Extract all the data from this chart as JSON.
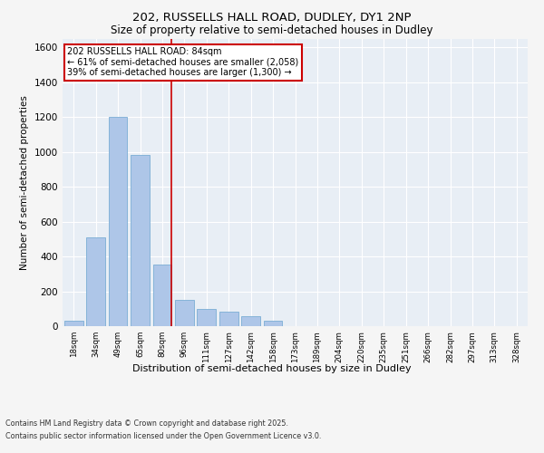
{
  "title_line1": "202, RUSSELLS HALL ROAD, DUDLEY, DY1 2NP",
  "title_line2": "Size of property relative to semi-detached houses in Dudley",
  "xlabel": "Distribution of semi-detached houses by size in Dudley",
  "ylabel": "Number of semi-detached properties",
  "bins": [
    "18sqm",
    "34sqm",
    "49sqm",
    "65sqm",
    "80sqm",
    "96sqm",
    "111sqm",
    "127sqm",
    "142sqm",
    "158sqm",
    "173sqm",
    "189sqm",
    "204sqm",
    "220sqm",
    "235sqm",
    "251sqm",
    "266sqm",
    "282sqm",
    "297sqm",
    "313sqm",
    "328sqm"
  ],
  "bar_values": [
    30,
    510,
    1200,
    980,
    355,
    150,
    100,
    85,
    55,
    30,
    0,
    0,
    0,
    0,
    0,
    0,
    0,
    0,
    0,
    0,
    0
  ],
  "bar_color": "#aec6e8",
  "bar_edge_color": "#7aadd4",
  "vline_color": "#cc0000",
  "vline_x": 4.42,
  "annotation_title": "202 RUSSELLS HALL ROAD: 84sqm",
  "annotation_line1": "← 61% of semi-detached houses are smaller (2,058)",
  "annotation_line2": "39% of semi-detached houses are larger (1,300) →",
  "annotation_box_facecolor": "#ffffff",
  "annotation_box_edgecolor": "#cc0000",
  "ylim": [
    0,
    1650
  ],
  "yticks": [
    0,
    200,
    400,
    600,
    800,
    1000,
    1200,
    1400,
    1600
  ],
  "plot_bg_color": "#e8eef5",
  "fig_bg_color": "#f5f5f5",
  "footer_line1": "Contains HM Land Registry data © Crown copyright and database right 2025.",
  "footer_line2": "Contains public sector information licensed under the Open Government Licence v3.0."
}
